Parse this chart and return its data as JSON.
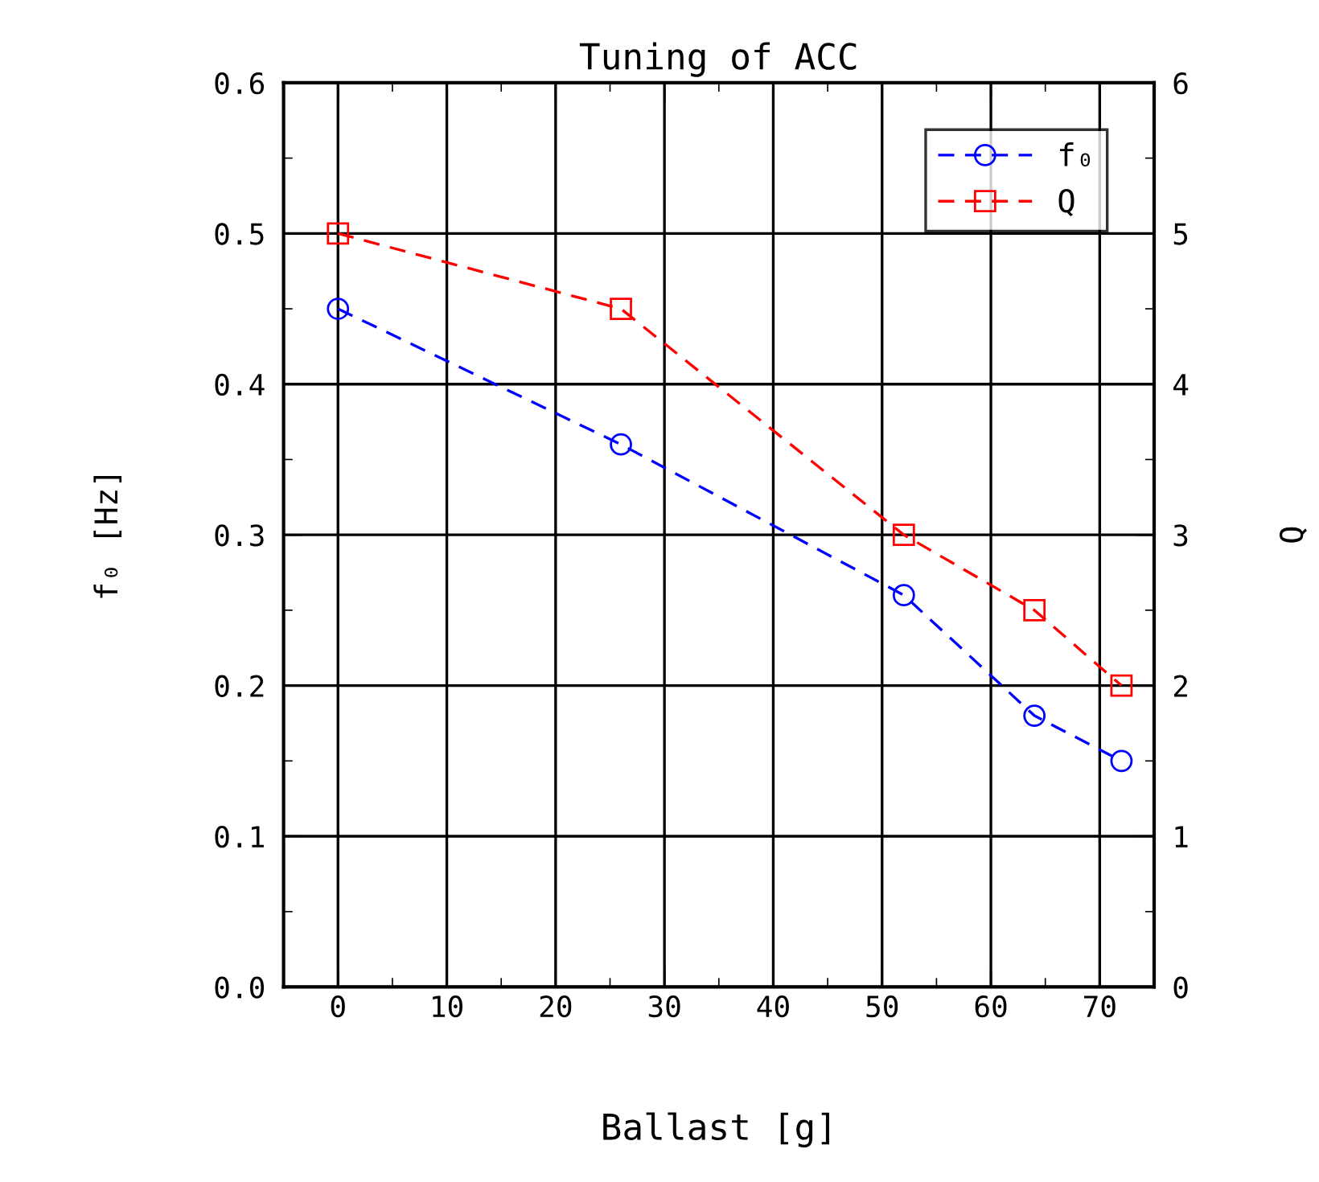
{
  "chart_data": {
    "type": "line",
    "title": "Tuning of ACC",
    "xlabel": "Ballast [g]",
    "ylabel": "f₀ [Hz]",
    "y2label": "Q",
    "xlim": [
      -5,
      75
    ],
    "xticks": [
      0,
      10,
      20,
      30,
      40,
      50,
      60,
      70
    ],
    "ylim": [
      0,
      0.6
    ],
    "yticks": [
      {
        "value": 0,
        "label": "0.0"
      },
      0.1,
      0.2,
      0.3,
      0.4,
      0.5,
      0.6
    ],
    "y2lim": [
      0,
      6
    ],
    "y2ticks": [
      0,
      1,
      2,
      3,
      4,
      5,
      6
    ],
    "x": [
      0,
      26,
      52,
      64,
      72
    ],
    "series": [
      {
        "name": "f₀",
        "color": "#0000ff",
        "values": [
          0.45,
          0.36,
          0.26,
          0.18,
          0.15
        ],
        "marker": "circle"
      },
      {
        "name": "Q",
        "color": "#ff0000",
        "values": [
          5,
          4.5,
          3,
          2.5,
          2
        ],
        "axis": "y2",
        "marker": "square"
      }
    ],
    "line_style": "dashed",
    "grid": true,
    "legend": "top right"
  }
}
